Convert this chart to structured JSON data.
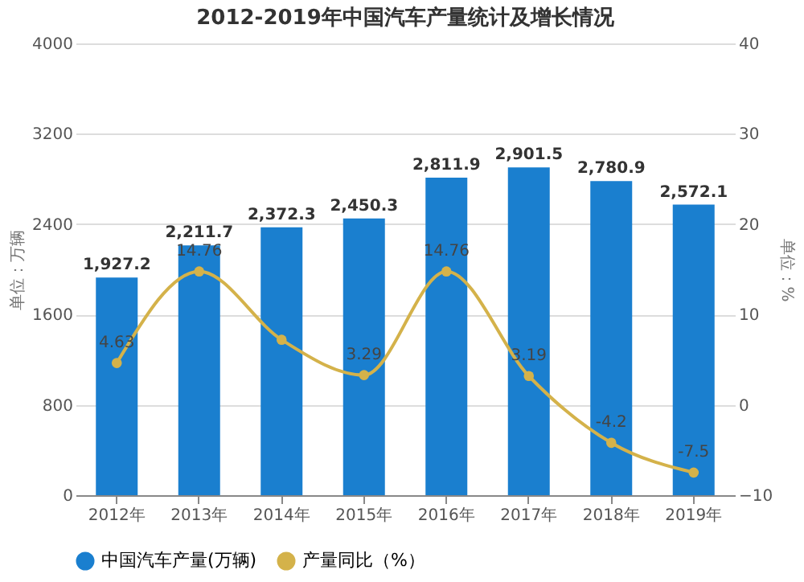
{
  "chart_data": {
    "type": "bar",
    "title": "2012-2019年中国汽车产量统计及增长情况",
    "categories": [
      "2012年",
      "2013年",
      "2014年",
      "2015年",
      "2016年",
      "2017年",
      "2018年",
      "2019年"
    ],
    "ylabel": "单位：万辆",
    "y2label": "单位：%",
    "ylim": [
      0,
      4000
    ],
    "yticks": [
      0,
      800,
      1600,
      2400,
      3200,
      4000
    ],
    "y2lim": [
      -10,
      40
    ],
    "y2ticks": [
      -10,
      0,
      10,
      20,
      30,
      40
    ],
    "grid": "y",
    "legend": "bottom",
    "series": [
      {
        "name": "中国汽车产量(万辆)",
        "color": "#1a7fcf",
        "values": [
          1927.2,
          2211.7,
          2372.3,
          2450.3,
          2811.9,
          2901.5,
          2780.9,
          2572.1
        ],
        "value_labels": [
          "1,927.2",
          "2,211.7",
          "2,372.3",
          "2,450.3",
          "2,811.9",
          "2,901.5",
          "2,780.9",
          "2,572.1"
        ]
      },
      {
        "name": "产量同比（%）",
        "type": "line",
        "axis": "y2",
        "marker": "circle",
        "color": "#d4b24a",
        "values": [
          4.63,
          14.76,
          7.2,
          3.29,
          14.76,
          3.19,
          -4.2,
          -7.5
        ],
        "value_labels": [
          "4.63",
          "14.76",
          null,
          "3.29",
          "14.76",
          "3.19",
          "-4.2",
          "-7.5"
        ]
      }
    ]
  }
}
